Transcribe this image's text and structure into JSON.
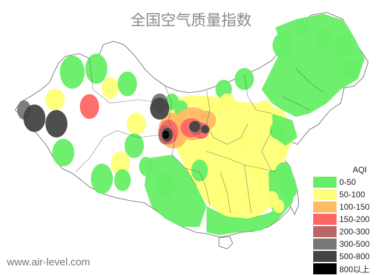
{
  "title": "全国空气质量指数",
  "watermark": "www.air-level.com",
  "colors": {
    "background": "#ffffff",
    "land": "#ffffff",
    "border": "#5a5a5a",
    "title": "#8a8a8a"
  },
  "legend": {
    "title": "AQI",
    "items": [
      {
        "label": "0-50",
        "color": "#66ee66"
      },
      {
        "label": "50-100",
        "color": "#ffff77"
      },
      {
        "label": "100-150",
        "color": "#ffbb66"
      },
      {
        "label": "150-200",
        "color": "#ff6666"
      },
      {
        "label": "200-300",
        "color": "#bb6666"
      },
      {
        "label": "300-500",
        "color": "#777777"
      },
      {
        "label": "500-800",
        "color": "#444444"
      },
      {
        "label": "800以上",
        "color": "#000000"
      }
    ]
  }
}
